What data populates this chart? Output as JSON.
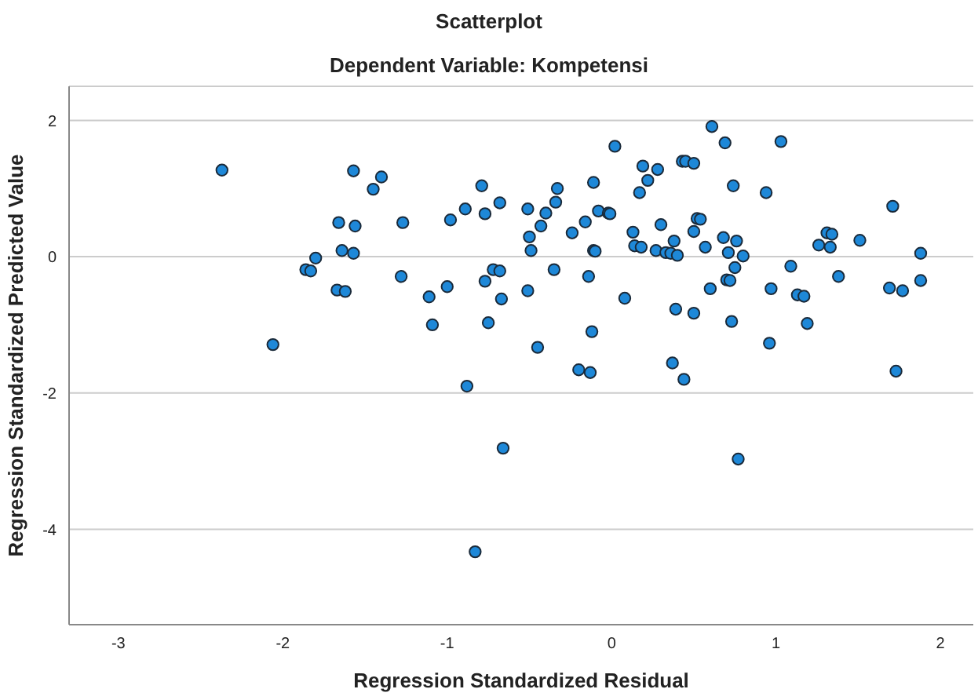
{
  "chart_data": {
    "type": "scatter",
    "title": "Scatterplot",
    "subtitle": "Dependent Variable: Kompetensi",
    "xlabel": "Regression Standardized Residual",
    "ylabel": "Regression Standardized Predicted Value",
    "xlim": [
      -3.3,
      2.2
    ],
    "xticks": [
      -3,
      -2,
      -1,
      0,
      1,
      2
    ],
    "ylim": [
      -5.4,
      2.5
    ],
    "yticks": [
      2,
      0,
      -2,
      -4
    ],
    "grid": "y",
    "marker": "circle",
    "series": [
      {
        "color": "#1e88d8",
        "x": [
          -2.37,
          -1.57,
          -1.4,
          -1.45,
          -0.79,
          -1.66,
          -1.56,
          -1.27,
          -0.98,
          -0.89,
          -0.77,
          -0.68,
          -0.51,
          -1.64,
          -1.57,
          -1.8,
          -1.86,
          -1.83,
          -1.67,
          -1.62,
          -1.28,
          -1.11,
          -1.0,
          -1.09,
          -0.77,
          -0.72,
          -0.68,
          -0.67,
          -0.75,
          -0.51,
          -2.06,
          -0.88,
          0.61,
          0.69,
          1.03,
          0.02,
          0.43,
          0.45,
          0.5,
          0.19,
          0.28,
          0.22,
          0.17,
          0.74,
          0.94,
          1.71,
          -0.11,
          -0.33,
          -0.34,
          -0.4,
          -0.43,
          -0.08,
          -0.02,
          -0.01,
          -0.16,
          -0.24,
          -0.5,
          -0.49,
          -0.11,
          -0.1,
          0.13,
          0.3,
          0.14,
          0.18,
          0.27,
          0.33,
          0.36,
          0.4,
          0.38,
          0.52,
          0.54,
          0.5,
          0.57,
          0.68,
          0.76,
          0.71,
          0.8,
          0.75,
          0.7,
          0.72,
          0.6,
          0.73,
          1.09,
          0.97,
          1.13,
          1.17,
          1.19,
          1.26,
          1.31,
          1.34,
          1.33,
          1.38,
          1.51,
          1.69,
          1.77,
          1.88,
          1.88,
          1.73,
          0.96,
          -0.35,
          -0.14,
          0.08,
          0.39,
          0.5,
          -0.12,
          -0.45,
          -0.2,
          -0.13,
          0.37,
          0.44,
          -0.66,
          0.77,
          -0.83
        ],
        "values": [
          1.27,
          1.26,
          1.17,
          0.99,
          1.04,
          0.5,
          0.45,
          0.5,
          0.54,
          0.7,
          0.63,
          0.79,
          0.7,
          0.09,
          0.05,
          -0.02,
          -0.19,
          -0.21,
          -0.49,
          -0.51,
          -0.29,
          -0.59,
          -0.44,
          -1.0,
          -0.36,
          -0.19,
          -0.21,
          -0.62,
          -0.97,
          -0.5,
          -1.29,
          -1.9,
          1.91,
          1.67,
          1.69,
          1.62,
          1.4,
          1.4,
          1.37,
          1.33,
          1.28,
          1.12,
          0.94,
          1.04,
          0.94,
          0.74,
          1.09,
          1.0,
          0.8,
          0.64,
          0.45,
          0.67,
          0.64,
          0.63,
          0.51,
          0.35,
          0.29,
          0.09,
          0.09,
          0.08,
          0.36,
          0.47,
          0.16,
          0.14,
          0.09,
          0.06,
          0.05,
          0.02,
          0.23,
          0.56,
          0.55,
          0.37,
          0.14,
          0.28,
          0.23,
          0.06,
          0.01,
          -0.16,
          -0.34,
          -0.35,
          -0.47,
          -0.95,
          -0.14,
          -0.47,
          -0.56,
          -0.58,
          -0.98,
          0.17,
          0.35,
          0.33,
          0.14,
          -0.29,
          0.24,
          -0.46,
          -0.5,
          0.05,
          -0.35,
          -1.68,
          -1.27,
          -0.19,
          -0.29,
          -0.61,
          -0.77,
          -0.83,
          -1.1,
          -1.33,
          -1.66,
          -1.7,
          -1.56,
          -1.8,
          -2.81,
          -2.97,
          -4.33
        ]
      }
    ]
  }
}
